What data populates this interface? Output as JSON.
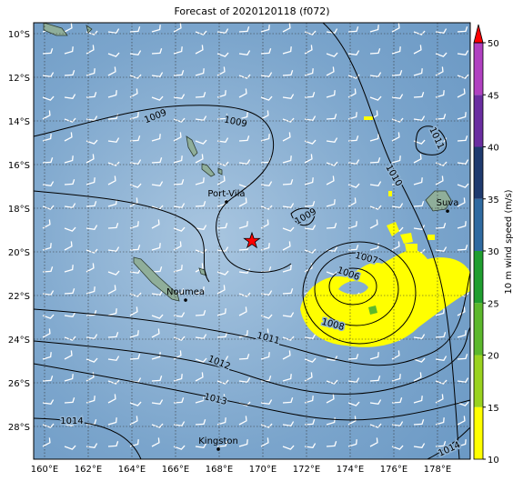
{
  "title": "Forecast of 2020120118 (f072)",
  "map": {
    "lon_range": [
      159.5,
      179.5
    ],
    "lat_range": [
      -9.5,
      -29.5
    ],
    "lon_ticks": [
      {
        "value": 160,
        "label": "160°E"
      },
      {
        "value": 162,
        "label": "162°E"
      },
      {
        "value": 164,
        "label": "164°E"
      },
      {
        "value": 166,
        "label": "166°E"
      },
      {
        "value": 168,
        "label": "168°E"
      },
      {
        "value": 170,
        "label": "170°E"
      },
      {
        "value": 172,
        "label": "172°E"
      },
      {
        "value": 174,
        "label": "174°E"
      },
      {
        "value": 176,
        "label": "176°E"
      },
      {
        "value": 178,
        "label": "178°E"
      }
    ],
    "lat_ticks": [
      {
        "value": -10,
        "label": "10°S"
      },
      {
        "value": -12,
        "label": "12°S"
      },
      {
        "value": -14,
        "label": "14°S"
      },
      {
        "value": -16,
        "label": "16°S"
      },
      {
        "value": -18,
        "label": "18°S"
      },
      {
        "value": -20,
        "label": "20°S"
      },
      {
        "value": -22,
        "label": "22°S"
      },
      {
        "value": -24,
        "label": "24°S"
      },
      {
        "value": -26,
        "label": "26°S"
      },
      {
        "value": -28,
        "label": "28°S"
      }
    ],
    "places": [
      {
        "name": "Port-Vila",
        "lon": 168.33,
        "lat": -17.71
      },
      {
        "name": "Noumea",
        "lon": 166.46,
        "lat": -22.21
      },
      {
        "name": "Suva",
        "lon": 178.46,
        "lat": -18.13
      },
      {
        "name": "Kingston",
        "lon": 167.96,
        "lat": -29.04
      }
    ],
    "storm_center": {
      "lon": 169.5,
      "lat": -19.5,
      "color": "#ff0000"
    },
    "contour_labels": [
      {
        "label": "1009",
        "lon": 165.08,
        "lat": -13.79
      },
      {
        "label": "1009",
        "lon": 168.75,
        "lat": -14.04
      },
      {
        "label": "1009",
        "lon": 171.96,
        "lat": -18.38
      },
      {
        "label": "1010",
        "lon": 176.0,
        "lat": -16.5
      },
      {
        "label": "1011",
        "lon": 177.96,
        "lat": -14.79
      },
      {
        "label": "1007",
        "lon": 174.75,
        "lat": -20.29
      },
      {
        "label": "1006",
        "lon": 173.92,
        "lat": -21.0
      },
      {
        "label": "1008",
        "lon": 173.21,
        "lat": -23.33
      },
      {
        "label": "1011",
        "lon": 170.25,
        "lat": -23.96
      },
      {
        "label": "1012",
        "lon": 168.0,
        "lat": -25.08
      },
      {
        "label": "1013",
        "lon": 167.83,
        "lat": -26.75
      },
      {
        "label": "1014",
        "lon": 161.25,
        "lat": -27.75
      },
      {
        "label": "1014",
        "lon": 178.54,
        "lat": -29.04
      }
    ]
  },
  "colorbar": {
    "label": "10 m wind speed (m/s)",
    "range": [
      10,
      50
    ],
    "ticks": [
      10,
      15,
      20,
      25,
      30,
      35,
      40,
      45,
      50
    ],
    "colors": [
      "#ffff00",
      "#9ad21e",
      "#5cb82c",
      "#1f9e2f",
      "#2f6aa0",
      "#1e3a6e",
      "#6a2da0",
      "#b040c0"
    ],
    "extend_color": "#ff0000"
  }
}
